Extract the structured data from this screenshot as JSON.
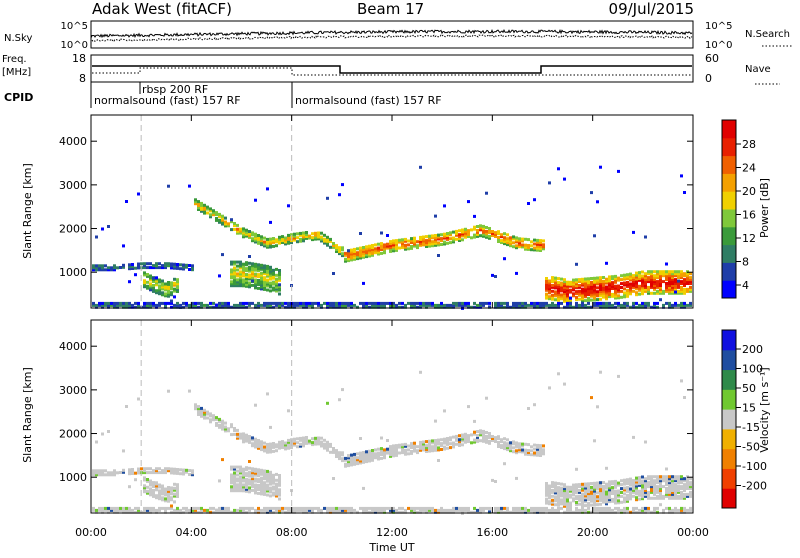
{
  "header": {
    "station": "Adak West (fitACF)",
    "beam": "Beam 17",
    "date": "09/Jul/2015"
  },
  "summary": {
    "nsky_label": "N.Sky",
    "nsearch_label": "N.Search",
    "nsky_ticks": [
      "10^5",
      "10^0"
    ],
    "nsearch_ticks": [
      "10^5",
      "10^0"
    ],
    "freq_label": "Freq.",
    "freq_unit": "[MHz]",
    "freq_ticks": [
      "18",
      "8"
    ],
    "nave_label": "Nave",
    "nave_ticks": [
      "60",
      "0"
    ],
    "cpid_label": "CPID",
    "cpid_segments": [
      {
        "label": "normalsound (fast) 157 RF",
        "start": 0,
        "end": 8
      },
      {
        "label": "rbsp 200 RF",
        "start": 2,
        "end": 8
      },
      {
        "label": "normalsound (fast) 157 RF",
        "start": 8,
        "end": 24
      }
    ]
  },
  "time_axis": {
    "label": "Time UT",
    "ticks": [
      "00:00",
      "04:00",
      "08:00",
      "12:00",
      "16:00",
      "20:00",
      "00:00"
    ]
  },
  "colors": {
    "power": [
      "#0000ff",
      "#1f3ea8",
      "#2f7d64",
      "#3a9a3a",
      "#7fc83a",
      "#f0d000",
      "#f4a000",
      "#f06000",
      "#e82000",
      "#e00000"
    ],
    "velocity": [
      "#e00000",
      "#f04000",
      "#f08000",
      "#f0b000",
      "#c8c8c8",
      "#70c830",
      "#2f8a4a",
      "#1f4ea0",
      "#1010e0"
    ]
  },
  "chart_data": [
    {
      "type": "heatmap",
      "panel": "power",
      "ylabel": "Slant Range [km]",
      "xlabel": "",
      "xlim": [
        0,
        24
      ],
      "ylim": [
        180,
        4600
      ],
      "yticks": [
        1000,
        2000,
        3000,
        4000
      ],
      "colorbar_label": "Power [dB]",
      "colorbar_ticks": [
        "28",
        "24",
        "20",
        "16",
        "12",
        "8",
        "4"
      ],
      "colorbar_range": [
        0,
        30
      ],
      "echo_bands": [
        {
          "x": [
            4.0,
            5.0,
            6.0,
            7.0,
            8.0,
            9.0,
            10.0
          ],
          "center": [
            2650,
            2300,
            1950,
            1700,
            1820,
            1900,
            1500
          ],
          "width": 200,
          "power": 16
        },
        {
          "x": [
            10.0,
            12.0,
            14.0,
            15.5,
            17.0,
            18.0
          ],
          "center": [
            1400,
            1650,
            1800,
            2000,
            1700,
            1650
          ],
          "width": 250,
          "power": 20
        },
        {
          "x": [
            5.5,
            6.0,
            7.0,
            7.5
          ],
          "center": [
            1000,
            1000,
            900,
            800
          ],
          "width": 550,
          "power": 14
        },
        {
          "x": [
            2.0,
            2.5,
            3.0,
            3.5
          ],
          "center": [
            900,
            750,
            650,
            800
          ],
          "width": 350,
          "power": 14
        },
        {
          "x": [
            18.0,
            19.0,
            20.0,
            21.0,
            22.0,
            23.0,
            24.0
          ],
          "center": [
            700,
            600,
            650,
            700,
            800,
            800,
            800
          ],
          "width": 500,
          "power": 24
        },
        {
          "x": [
            0.0,
            1.0,
            2.0,
            3.0,
            4.0
          ],
          "center": [
            1150,
            1150,
            1200,
            1200,
            1150
          ],
          "width": 120,
          "power": 6
        },
        {
          "x": [
            0.0,
            24.0
          ],
          "center": [
            260,
            260
          ],
          "width": 150,
          "power": 6
        }
      ]
    },
    {
      "type": "heatmap",
      "panel": "velocity",
      "ylabel": "Slant Range [km]",
      "xlabel": "Time UT",
      "xlim": [
        0,
        24
      ],
      "ylim": [
        180,
        4600
      ],
      "yticks": [
        1000,
        2000,
        3000,
        4000
      ],
      "colorbar_label": "Velocity [m s⁻¹]",
      "colorbar_ticks": [
        "200",
        "100",
        "50",
        "15",
        "-15",
        "-50",
        "-100",
        "-200"
      ],
      "colorbar_range": [
        -250,
        250
      ],
      "velocity_note_value": 0
    }
  ]
}
